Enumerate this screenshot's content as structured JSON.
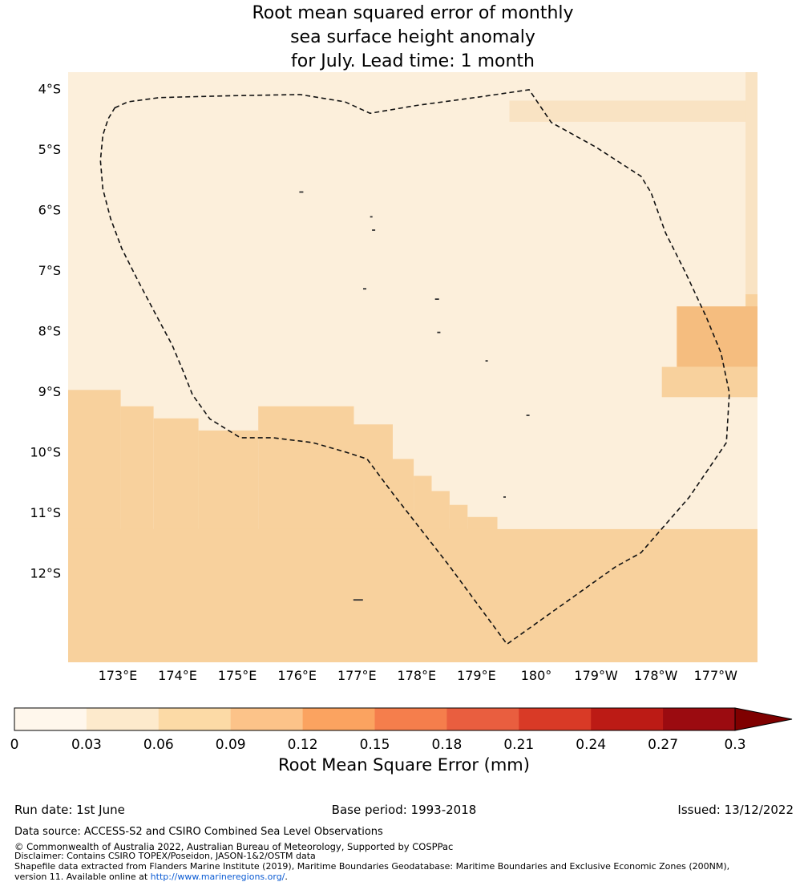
{
  "title": {
    "line1": "Root mean squared error of monthly",
    "line2": "sea surface height anomaly",
    "line3": "for July. Lead time: 1 month"
  },
  "colorbar": {
    "label": "Root Mean Square Error (mm)",
    "tick_labels": [
      "0",
      "0.03",
      "0.06",
      "0.09",
      "0.12",
      "0.15",
      "0.18",
      "0.21",
      "0.24",
      "0.27",
      "0.3"
    ],
    "segment_colors": [
      "#fff7ec",
      "#fdeacc",
      "#fcdaa6",
      "#fcc389",
      "#fba360",
      "#f57e4c",
      "#e95e3f",
      "#d93a26",
      "#bc1b15",
      "#9b0b10"
    ],
    "arrow_color": "#7f0000",
    "outline_color": "#000000"
  },
  "footer": {
    "run_date": "Run date: 1st June",
    "base_period": "Base period: 1993-2018",
    "issued": "Issued: 13/12/2022",
    "data_source": "Data source: ACCESS-S2 and CSIRO Combined Sea Level Observations",
    "copyright": "© Commonwealth of Australia 2022, Australian Bureau of Meteorology, Supported by COSPPac",
    "disclaimer": "Disclaimer: Contains CSIRO TOPEX/Poseidon, JASON-1&2/OSTM data",
    "shapefile_line1": "Shapefile data extracted from Flanders Marine Institute (2019), Maritime Boundaries Geodatabase: Maritime Boundaries and Exclusive Economic Zones (200NM),",
    "shapefile_line2_prefix": "version 11. Available online at ",
    "shapefile_url": "http://www.marineregions.org/",
    "shapefile_line2_suffix": "."
  },
  "chart_data": {
    "type": "heatmap",
    "title": "Root mean squared error of monthly sea surface height anomaly for July. Lead time: 1 month",
    "variable": "Root Mean Square Error",
    "units": "mm",
    "colorbar_ticks": [
      0,
      0.03,
      0.06,
      0.09,
      0.12,
      0.15,
      0.18,
      0.21,
      0.24,
      0.27,
      0.3
    ],
    "colorbar_extend": "max",
    "lon_range": [
      172.17,
      183.7
    ],
    "lat_range": [
      -3.73,
      -13.48
    ],
    "lon_ticks": [
      {
        "value": 173,
        "label": "173°E"
      },
      {
        "value": 174,
        "label": "174°E"
      },
      {
        "value": 175,
        "label": "175°E"
      },
      {
        "value": 176,
        "label": "176°E"
      },
      {
        "value": 177,
        "label": "177°E"
      },
      {
        "value": 178,
        "label": "178°E"
      },
      {
        "value": 179,
        "label": "179°E"
      },
      {
        "value": 180,
        "label": "180°"
      },
      {
        "value": 181,
        "label": "179°W"
      },
      {
        "value": 182,
        "label": "178°W"
      },
      {
        "value": 183,
        "label": "177°W"
      }
    ],
    "lat_ticks": [
      {
        "value": -4,
        "label": "4°S"
      },
      {
        "value": -5,
        "label": "5°S"
      },
      {
        "value": -6,
        "label": "6°S"
      },
      {
        "value": -7,
        "label": "7°S"
      },
      {
        "value": -8,
        "label": "8°S"
      },
      {
        "value": -9,
        "label": "9°S"
      },
      {
        "value": -10,
        "label": "10°S"
      },
      {
        "value": -11,
        "label": "11°S"
      },
      {
        "value": -12,
        "label": "12°S"
      }
    ],
    "map_palette": {
      "base": "#fcefdb",
      "shade2": "#f9e3c3",
      "shade3": "#f8d19d",
      "shade4": "#f5bd7f"
    },
    "base_color": "base",
    "base_value_band_mm": "0.03-0.06",
    "regions": [
      {
        "lon": [
          179.55,
          183.7
        ],
        "lat": [
          -4.2,
          -4.55
        ],
        "color": "shade2",
        "value_band_mm": "0.06-0.09"
      },
      {
        "lon": [
          183.5,
          183.7
        ],
        "lat": [
          -3.73,
          -7.4
        ],
        "color": "shade2",
        "value_band_mm": "0.06-0.09"
      },
      {
        "lon": [
          183.5,
          183.7
        ],
        "lat": [
          -7.4,
          -7.72
        ],
        "color": "shade3",
        "value_band_mm": "0.06-0.09"
      },
      {
        "lon": [
          182.35,
          183.7
        ],
        "lat": [
          -7.6,
          -8.6
        ],
        "color": "shade4",
        "value_band_mm": "0.09-0.12"
      },
      {
        "lon": [
          182.1,
          183.7
        ],
        "lat": [
          -8.6,
          -9.1
        ],
        "color": "shade3",
        "value_band_mm": "0.06-0.09"
      },
      {
        "lon": [
          172.17,
          173.05
        ],
        "lat": [
          -8.98,
          -13.48
        ],
        "color": "shade3",
        "value_band_mm": "0.06-0.09"
      },
      {
        "lon": [
          173.05,
          173.6
        ],
        "lat": [
          -9.25,
          -13.48
        ],
        "color": "shade3",
        "value_band_mm": "0.06-0.09"
      },
      {
        "lon": [
          173.6,
          174.35
        ],
        "lat": [
          -9.45,
          -13.48
        ],
        "color": "shade3",
        "value_band_mm": "0.06-0.09"
      },
      {
        "lon": [
          174.35,
          175.35
        ],
        "lat": [
          -9.65,
          -13.48
        ],
        "color": "shade3",
        "value_band_mm": "0.06-0.09"
      },
      {
        "lon": [
          175.35,
          176.95
        ],
        "lat": [
          -9.25,
          -13.48
        ],
        "color": "shade3",
        "value_band_mm": "0.06-0.09"
      },
      {
        "lon": [
          176.95,
          177.6
        ],
        "lat": [
          -9.55,
          -13.48
        ],
        "color": "shade3",
        "value_band_mm": "0.06-0.09"
      },
      {
        "lon": [
          177.6,
          177.95
        ],
        "lat": [
          -10.12,
          -13.48
        ],
        "color": "shade3",
        "value_band_mm": "0.06-0.09"
      },
      {
        "lon": [
          177.95,
          178.25
        ],
        "lat": [
          -10.4,
          -13.48
        ],
        "color": "shade3",
        "value_band_mm": "0.06-0.09"
      },
      {
        "lon": [
          178.25,
          178.55
        ],
        "lat": [
          -10.65,
          -13.48
        ],
        "color": "shade3",
        "value_band_mm": "0.06-0.09"
      },
      {
        "lon": [
          178.55,
          178.85
        ],
        "lat": [
          -10.88,
          -13.48
        ],
        "color": "shade3",
        "value_band_mm": "0.06-0.09"
      },
      {
        "lon": [
          178.85,
          179.35
        ],
        "lat": [
          -11.08,
          -13.48
        ],
        "color": "shade3",
        "value_band_mm": "0.06-0.09"
      },
      {
        "lon": [
          172.17,
          183.7
        ],
        "lat": [
          -11.28,
          -13.48
        ],
        "color": "shade3",
        "value_band_mm": "0.06-0.09"
      }
    ],
    "eez_boundary": [
      [
        172.95,
        -4.32
      ],
      [
        173.17,
        -4.22
      ],
      [
        173.7,
        -4.15
      ],
      [
        174.9,
        -4.12
      ],
      [
        176.05,
        -4.1
      ],
      [
        176.8,
        -4.22
      ],
      [
        177.22,
        -4.41
      ],
      [
        178.0,
        -4.28
      ],
      [
        179.05,
        -4.14
      ],
      [
        179.88,
        -4.02
      ],
      [
        180.25,
        -4.56
      ],
      [
        181.0,
        -4.97
      ],
      [
        181.75,
        -5.45
      ],
      [
        181.92,
        -5.72
      ],
      [
        182.16,
        -6.38
      ],
      [
        182.5,
        -7.05
      ],
      [
        182.84,
        -7.77
      ],
      [
        183.09,
        -8.37
      ],
      [
        183.23,
        -9.03
      ],
      [
        183.18,
        -9.85
      ],
      [
        182.56,
        -10.75
      ],
      [
        181.75,
        -11.67
      ],
      [
        181.33,
        -11.9
      ],
      [
        179.51,
        -13.18
      ],
      [
        178.54,
        -11.88
      ],
      [
        177.6,
        -10.69
      ],
      [
        177.17,
        -10.12
      ],
      [
        176.79,
        -10.0
      ],
      [
        176.26,
        -9.85
      ],
      [
        175.59,
        -9.77
      ],
      [
        175.05,
        -9.77
      ],
      [
        174.54,
        -9.46
      ],
      [
        174.25,
        -9.06
      ],
      [
        174.09,
        -8.66
      ],
      [
        173.91,
        -8.24
      ],
      [
        173.64,
        -7.74
      ],
      [
        173.34,
        -7.18
      ],
      [
        173.07,
        -6.65
      ],
      [
        172.88,
        -6.15
      ],
      [
        172.75,
        -5.66
      ],
      [
        172.71,
        -5.19
      ],
      [
        172.75,
        -4.77
      ],
      [
        172.84,
        -4.5
      ]
    ],
    "islands": [
      {
        "lon": 176.07,
        "lat": -5.71,
        "w": 5
      },
      {
        "lon": 177.24,
        "lat": -6.12,
        "w": 3
      },
      {
        "lon": 177.28,
        "lat": -6.34,
        "w": 4
      },
      {
        "lon": 177.13,
        "lat": -7.31,
        "w": 4
      },
      {
        "lon": 178.34,
        "lat": -7.48,
        "w": 5
      },
      {
        "lon": 178.37,
        "lat": -8.03,
        "w": 4
      },
      {
        "lon": 179.17,
        "lat": -8.5,
        "w": 3
      },
      {
        "lon": 179.86,
        "lat": -9.4,
        "w": 4
      },
      {
        "lon": 179.47,
        "lat": -10.75,
        "w": 3
      },
      {
        "lon": 177.02,
        "lat": -12.45,
        "w": 12
      }
    ]
  }
}
